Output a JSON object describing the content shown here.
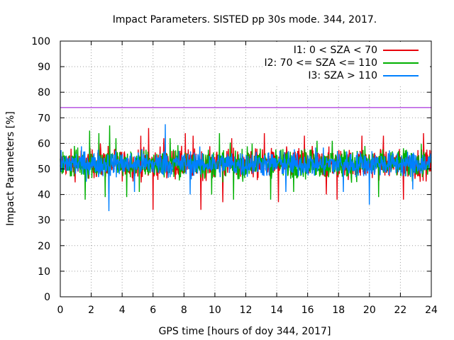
{
  "chart_data": {
    "type": "line",
    "title": "Impact Parameters. SISTED pp 30s mode. 344, 2017.",
    "xlabel": "GPS time [hours of doy 344, 2017]",
    "ylabel": "Impact Parameters [%]",
    "xlim": [
      0,
      24
    ],
    "ylim": [
      0,
      100
    ],
    "xticks": [
      0,
      2,
      4,
      6,
      8,
      10,
      12,
      14,
      16,
      18,
      20,
      22,
      24
    ],
    "yticks": [
      0,
      10,
      20,
      30,
      40,
      50,
      60,
      70,
      80,
      90,
      100
    ],
    "grid": true,
    "legend_position": "top-right",
    "threshold_line": {
      "y": 74,
      "color": "#9400d3"
    },
    "series": [
      {
        "name": "I1: 0 < SZA < 70",
        "color": "#e8000b",
        "mean": 52,
        "typical_range": [
          44,
          60
        ],
        "spikes": [
          [
            2.6,
            60
          ],
          [
            3.1,
            59
          ],
          [
            5.2,
            63
          ],
          [
            5.7,
            66
          ],
          [
            6.0,
            34
          ],
          [
            6.7,
            62
          ],
          [
            8.1,
            64
          ],
          [
            8.6,
            63
          ],
          [
            9.1,
            34
          ],
          [
            10.5,
            37
          ],
          [
            11.1,
            62
          ],
          [
            13.2,
            64
          ],
          [
            14.1,
            37
          ],
          [
            15.8,
            63
          ],
          [
            16.3,
            59
          ],
          [
            17.2,
            40
          ],
          [
            17.9,
            38
          ],
          [
            19.5,
            63
          ],
          [
            20.9,
            63
          ],
          [
            22.2,
            38
          ],
          [
            23.5,
            64
          ]
        ]
      },
      {
        "name": "I2: 70 <= SZA <= 110",
        "color": "#00b000",
        "mean": 52,
        "typical_range": [
          44,
          60
        ],
        "spikes": [
          [
            0.9,
            59
          ],
          [
            1.6,
            38
          ],
          [
            1.9,
            65
          ],
          [
            2.5,
            64
          ],
          [
            2.9,
            39
          ],
          [
            3.2,
            67
          ],
          [
            3.6,
            62
          ],
          [
            4.3,
            39
          ],
          [
            5.1,
            41
          ],
          [
            7.1,
            62
          ],
          [
            9.8,
            40
          ],
          [
            10.3,
            64
          ],
          [
            11.2,
            38
          ],
          [
            12.4,
            60
          ],
          [
            13.6,
            38
          ],
          [
            15.1,
            41
          ],
          [
            16.6,
            61
          ],
          [
            17.6,
            61
          ],
          [
            19.7,
            59
          ],
          [
            20.6,
            39
          ]
        ]
      },
      {
        "name": "I3: SZA > 110",
        "color": "#0080ff",
        "mean": 52,
        "typical_range": [
          45,
          59
        ],
        "spikes": [
          [
            3.15,
            33.5
          ],
          [
            6.8,
            67.5
          ],
          [
            20.0,
            36
          ],
          [
            4.8,
            41
          ],
          [
            8.4,
            40
          ],
          [
            14.6,
            41
          ],
          [
            18.3,
            41
          ],
          [
            22.8,
            42
          ]
        ]
      }
    ]
  }
}
